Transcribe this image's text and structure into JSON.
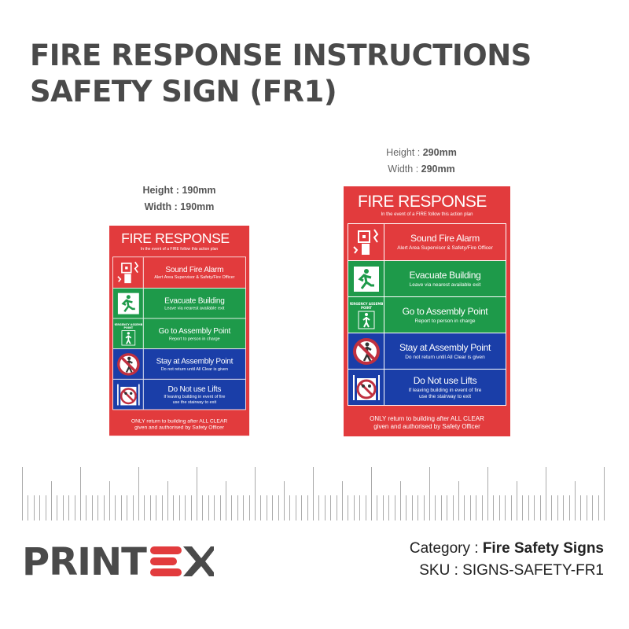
{
  "title": {
    "line1": "FIRE RESPONSE INSTRUCTIONS",
    "line2": "SAFETY SIGN (FR1)"
  },
  "sizes": [
    {
      "height_label": "Height : ",
      "height": "190mm",
      "width_label": "Width : ",
      "width": "190mm"
    },
    {
      "height_label": "Height : ",
      "height": "290mm",
      "width_label": "Width : ",
      "width": "290mm"
    }
  ],
  "sign": {
    "heading": "FIRE RESPONSE",
    "subheading": "In the event of a FIRE follow this action plan",
    "rows": [
      {
        "title": "Sound Fire Alarm",
        "detail": "Alert Area Supervisor & Safety/Fire Officer",
        "color": "#e23b3d",
        "icon": "fire-alarm-icon"
      },
      {
        "title": "Evacuate Building",
        "detail": "Leave via nearest available exit",
        "color": "#1e9a4a",
        "icon": "running-exit-icon"
      },
      {
        "title": "Go to Assembly Point",
        "detail": "Report to person in charge",
        "color": "#1e9a4a",
        "icon": "assembly-point-icon",
        "icon_text": "EMERGENCY ASSEMBLY POINT"
      },
      {
        "title": "Stay at Assembly Point",
        "detail": "Do not return until All Clear is given",
        "color": "#1a3ea8",
        "icon": "no-entry-person-icon"
      },
      {
        "title": "Do Not use Lifts",
        "detail": "If leaving building in event of fire\nuse the stairway to exit",
        "color": "#1a3ea8",
        "icon": "no-lift-icon"
      }
    ],
    "footer": "ONLY return to building after ALL CLEAR\ngiven and authorised by Safety Officer"
  },
  "brand": {
    "logo": "PRINTEX",
    "dark": "#4a4a4a",
    "accent": "#e23b3d"
  },
  "meta": {
    "category_label": "Category : ",
    "category": "Fire Safety Signs",
    "sku_label": "SKU : ",
    "sku": "SIGNS-SAFETY-FR1"
  }
}
